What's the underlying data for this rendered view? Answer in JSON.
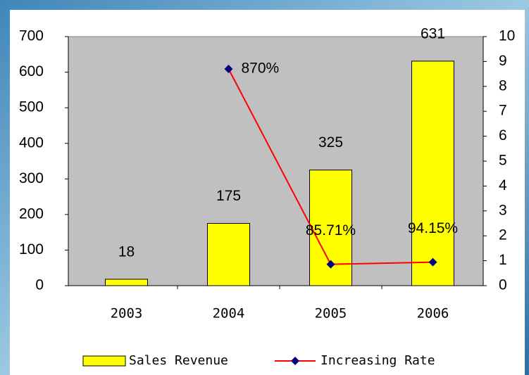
{
  "chart_data": {
    "type": "bar",
    "categories": [
      "2003",
      "2004",
      "2005",
      "2006"
    ],
    "series": [
      {
        "name": "Sales Revenue",
        "color": "#ffff00",
        "values": [
          18,
          175,
          325,
          631
        ]
      },
      {
        "name": "Increasing Rate",
        "color": "#ff0000",
        "marker_color": "#000080",
        "axis": "y2",
        "type": "line",
        "values": [
          null,
          8.7,
          0.8571,
          0.9415
        ],
        "value_labels": [
          null,
          "870%",
          "85.71%",
          "94.15%"
        ]
      }
    ],
    "ylim": [
      0,
      700
    ],
    "yticks": [
      0,
      100,
      200,
      300,
      400,
      500,
      600,
      700
    ],
    "y2lim": [
      0,
      10
    ],
    "y2ticks": [
      0,
      1,
      2,
      3,
      4,
      5,
      6,
      7,
      8,
      9,
      10
    ],
    "legend": "bottom"
  }
}
